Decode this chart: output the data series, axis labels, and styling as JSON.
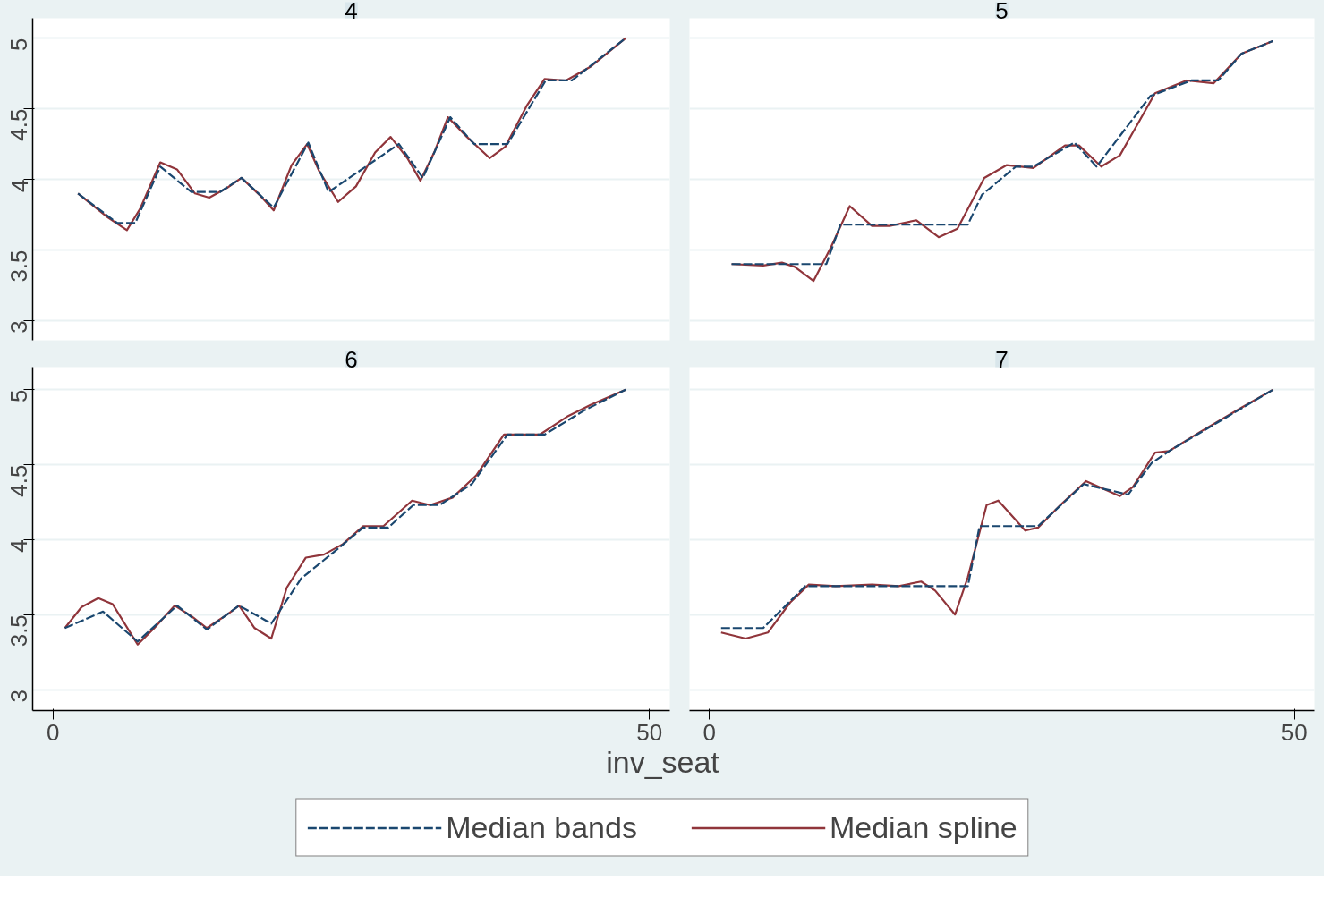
{
  "chart_data": [
    {
      "type": "line",
      "title": "4",
      "xlim": [
        -1.7,
        51.7
      ],
      "ylim": [
        2.86,
        5.14
      ],
      "xticks": [
        0,
        50
      ],
      "yticks": [
        3,
        3.5,
        4,
        4.5,
        5
      ],
      "tick_labels": "y",
      "grid": "y",
      "legend": "bottom",
      "series": [
        {
          "name": "Median bands",
          "color": "#1a476f",
          "line_style": "dashed",
          "x": [
            2.1,
            5.4,
            6.9,
            9.0,
            11.6,
            14.0,
            15.8,
            18.5,
            21.4,
            23.1,
            29.0,
            31.0,
            33.3,
            35.3,
            38.1,
            41.3,
            43.5,
            48.0
          ],
          "values": [
            3.9,
            3.69,
            3.69,
            4.09,
            3.91,
            3.91,
            4.01,
            3.8,
            4.26,
            3.91,
            4.25,
            4.01,
            4.44,
            4.25,
            4.25,
            4.7,
            4.7,
            5.0
          ]
        },
        {
          "name": "Median spline",
          "color": "#90353b",
          "line_style": "solid",
          "x": [
            2.1,
            4.6,
            6.2,
            7.3,
            9.0,
            10.4,
            11.9,
            13.1,
            14.6,
            15.8,
            17.3,
            18.5,
            20.0,
            21.3,
            22.3,
            23.9,
            25.4,
            27.0,
            28.3,
            29.7,
            30.8,
            32.0,
            33.1,
            34.7,
            36.6,
            37.9,
            39.7,
            41.2,
            43.0,
            45.1,
            48.0
          ],
          "values": [
            3.9,
            3.73,
            3.64,
            3.79,
            4.12,
            4.07,
            3.9,
            3.87,
            3.94,
            4.01,
            3.89,
            3.78,
            4.1,
            4.25,
            4.06,
            3.84,
            3.95,
            4.19,
            4.3,
            4.15,
            3.99,
            4.2,
            4.44,
            4.3,
            4.15,
            4.23,
            4.52,
            4.71,
            4.7,
            4.8,
            5.0
          ]
        }
      ]
    },
    {
      "type": "line",
      "title": "5",
      "xlim": [
        -1.7,
        51.7
      ],
      "ylim": [
        2.86,
        5.14
      ],
      "xticks": [
        0,
        50
      ],
      "yticks": [
        3,
        3.5,
        4,
        4.5,
        5
      ],
      "tick_labels": false,
      "grid": "y",
      "series": [
        {
          "color": "#1a476f",
          "line_style": "dashed",
          "x": [
            1.9,
            10.0,
            11.2,
            22.1,
            23.3,
            26.2,
            27.7,
            31.2,
            33.1,
            37.7,
            41.2,
            43.5,
            45.5,
            48.2
          ],
          "values": [
            3.4,
            3.4,
            3.68,
            3.68,
            3.89,
            4.09,
            4.09,
            4.26,
            4.09,
            4.59,
            4.7,
            4.7,
            4.89,
            4.98
          ]
        },
        {
          "color": "#90353b",
          "line_style": "solid",
          "x": [
            1.9,
            4.6,
            6.2,
            7.3,
            8.9,
            10.4,
            12.0,
            13.9,
            15.4,
            17.7,
            19.6,
            21.2,
            23.5,
            25.4,
            27.7,
            30.4,
            31.6,
            33.5,
            35.1,
            38.1,
            40.8,
            43.1,
            45.5,
            48.2
          ],
          "values": [
            3.4,
            3.39,
            3.41,
            3.38,
            3.28,
            3.52,
            3.81,
            3.67,
            3.67,
            3.71,
            3.59,
            3.65,
            4.01,
            4.1,
            4.08,
            4.24,
            4.24,
            4.09,
            4.17,
            4.61,
            4.7,
            4.68,
            4.89,
            4.98
          ]
        }
      ]
    },
    {
      "type": "line",
      "title": "6",
      "xlim": [
        -1.7,
        51.7
      ],
      "ylim": [
        2.86,
        5.15
      ],
      "xticks": [
        0,
        50
      ],
      "yticks": [
        3,
        3.5,
        4,
        4.5,
        5
      ],
      "grid": "y",
      "series": [
        {
          "color": "#1a476f",
          "line_style": "dashed",
          "x": [
            1.0,
            4.2,
            7.1,
            10.4,
            12.9,
            15.6,
            18.3,
            20.8,
            23.9,
            26.0,
            28.1,
            30.2,
            32.4,
            35.1,
            38.1,
            41.2,
            44.5,
            48.0
          ],
          "values": [
            3.41,
            3.52,
            3.32,
            3.56,
            3.4,
            3.56,
            3.44,
            3.74,
            3.94,
            4.08,
            4.08,
            4.23,
            4.23,
            4.37,
            4.7,
            4.7,
            4.86,
            5.0
          ]
        },
        {
          "color": "#90353b",
          "line_style": "solid",
          "x": [
            1.0,
            2.4,
            3.8,
            5.0,
            7.1,
            8.5,
            10.2,
            11.6,
            12.9,
            14.6,
            15.6,
            16.9,
            18.3,
            19.6,
            21.2,
            22.7,
            24.3,
            26.0,
            27.7,
            30.1,
            31.6,
            33.5,
            35.5,
            37.8,
            40.8,
            43.1,
            45.1,
            48.0
          ],
          "values": [
            3.41,
            3.55,
            3.61,
            3.57,
            3.3,
            3.41,
            3.56,
            3.49,
            3.41,
            3.5,
            3.56,
            3.41,
            3.34,
            3.68,
            3.88,
            3.9,
            3.97,
            4.09,
            4.09,
            4.26,
            4.23,
            4.28,
            4.43,
            4.7,
            4.7,
            4.82,
            4.9,
            5.0
          ]
        }
      ]
    },
    {
      "type": "line",
      "title": "7",
      "xlabel": "inv_seat",
      "xlim": [
        -1.7,
        51.7
      ],
      "ylim": [
        2.86,
        5.15
      ],
      "xticks": [
        0,
        50
      ],
      "yticks": [
        3,
        3.5,
        4,
        4.5,
        5
      ],
      "tick_labels": "x",
      "grid": "y",
      "series": [
        {
          "color": "#1a476f",
          "line_style": "dashed",
          "x": [
            1.0,
            4.6,
            8.2,
            22.1,
            23.1,
            28.1,
            32.0,
            35.8,
            37.8,
            39.3,
            48.2
          ],
          "values": [
            3.41,
            3.41,
            3.69,
            3.69,
            4.09,
            4.09,
            4.37,
            4.3,
            4.51,
            4.59,
            5.0
          ]
        },
        {
          "color": "#90353b",
          "line_style": "solid",
          "x": [
            1.0,
            3.1,
            5.0,
            6.9,
            8.5,
            10.8,
            13.9,
            16.2,
            18.1,
            19.3,
            21.0,
            22.1,
            23.7,
            24.7,
            27.0,
            28.1,
            30.0,
            32.2,
            35.1,
            36.2,
            38.1,
            39.3,
            42.0,
            45.5,
            48.2
          ],
          "values": [
            3.38,
            3.34,
            3.38,
            3.58,
            3.7,
            3.69,
            3.7,
            3.69,
            3.72,
            3.66,
            3.5,
            3.75,
            4.23,
            4.26,
            4.06,
            4.08,
            4.23,
            4.39,
            4.29,
            4.35,
            4.58,
            4.59,
            4.72,
            4.88,
            5.0
          ]
        }
      ]
    }
  ]
}
